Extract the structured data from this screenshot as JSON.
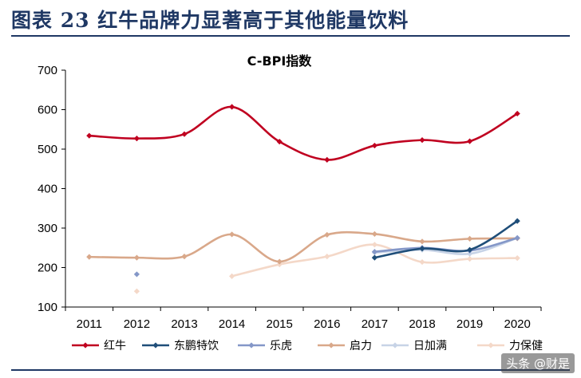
{
  "figure": {
    "title": "图表 23   红牛品牌力显著高于其他能量饮料",
    "watermark": "头条 @财是"
  },
  "chart_data": {
    "type": "line",
    "title": "C-BPI指数",
    "xlabel": "",
    "ylabel": "",
    "categories": [
      "2011",
      "2012",
      "2013",
      "2014",
      "2015",
      "2016",
      "2017",
      "2018",
      "2019",
      "2020"
    ],
    "ylim": [
      100,
      700
    ],
    "yticks": [
      100,
      200,
      300,
      400,
      500,
      600,
      700
    ],
    "grid": false,
    "legend_position": "bottom",
    "series": [
      {
        "name": "红牛",
        "color": "#c00020",
        "values": [
          534,
          527,
          538,
          607,
          519,
          473,
          509,
          523,
          520,
          590
        ]
      },
      {
        "name": "东鹏特饮",
        "color": "#1f4e79",
        "values": [
          null,
          null,
          null,
          null,
          null,
          null,
          225,
          248,
          245,
          318
        ]
      },
      {
        "name": "乐虎",
        "color": "#8497c8",
        "values": [
          null,
          183,
          null,
          null,
          null,
          null,
          240,
          250,
          243,
          275
        ]
      },
      {
        "name": "启力",
        "color": "#d9a88a",
        "values": [
          227,
          225,
          228,
          284,
          215,
          283,
          285,
          266,
          273,
          274
        ]
      },
      {
        "name": "日加满",
        "color": "#c7d3e6",
        "values": [
          null,
          null,
          null,
          null,
          null,
          null,
          238,
          245,
          235,
          275
        ]
      },
      {
        "name": "力保健",
        "color": "#f4d8c8",
        "values": [
          null,
          140,
          null,
          178,
          208,
          228,
          258,
          214,
          222,
          224
        ]
      }
    ]
  }
}
